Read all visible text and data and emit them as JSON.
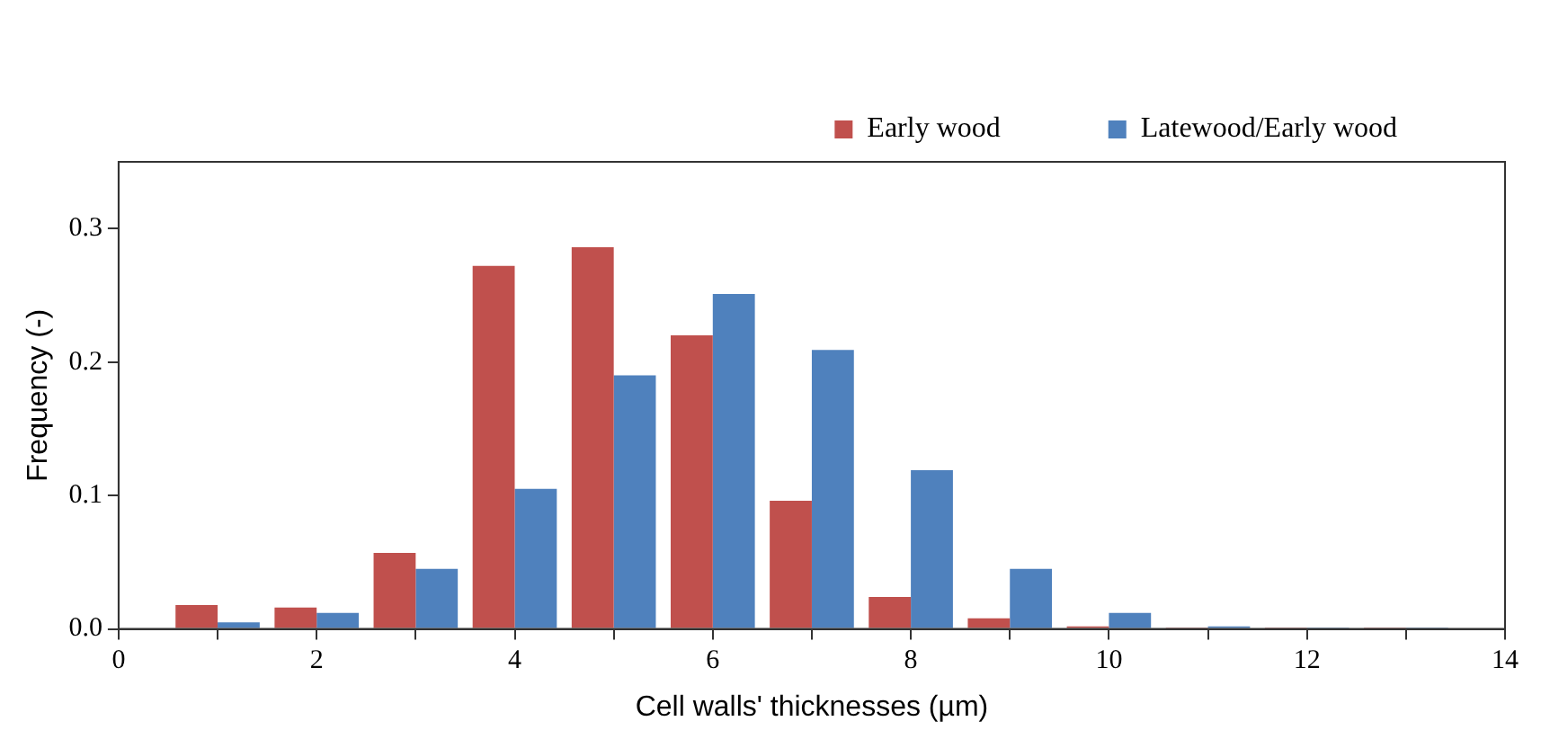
{
  "chart_data": {
    "type": "bar",
    "xlabel": "Cell walls' thicknesses (µm)",
    "ylabel": "Frequency (-)",
    "x": [
      1,
      2,
      3,
      4,
      5,
      6,
      7,
      8,
      9,
      10,
      11,
      12,
      13
    ],
    "series": [
      {
        "name": "Early wood",
        "color": "#c0504d",
        "values": [
          0.018,
          0.016,
          0.057,
          0.272,
          0.286,
          0.22,
          0.096,
          0.024,
          0.008,
          0.002,
          0.001,
          0.001,
          0.001
        ]
      },
      {
        "name": "Latewood/Early wood",
        "color": "#4f81bd",
        "values": [
          0.005,
          0.012,
          0.045,
          0.105,
          0.19,
          0.251,
          0.209,
          0.119,
          0.045,
          0.012,
          0.002,
          0.001,
          0.001
        ]
      }
    ],
    "xlim": [
      0,
      14
    ],
    "xticks": [
      0,
      {
        "value": 1,
        "label": null
      },
      2,
      {
        "value": 3,
        "label": null
      },
      4,
      {
        "value": 5,
        "label": null
      },
      6,
      {
        "value": 7,
        "label": null
      },
      8,
      {
        "value": 9,
        "label": null
      },
      10,
      {
        "value": 11,
        "label": null
      },
      12,
      {
        "value": 13,
        "label": null
      },
      14
    ],
    "ylim": [
      0,
      0.35
    ],
    "yticks": [
      {
        "value": 0,
        "label": "0.0"
      },
      0.1,
      0.2,
      0.3
    ],
    "grid": false,
    "legend": "top right"
  }
}
